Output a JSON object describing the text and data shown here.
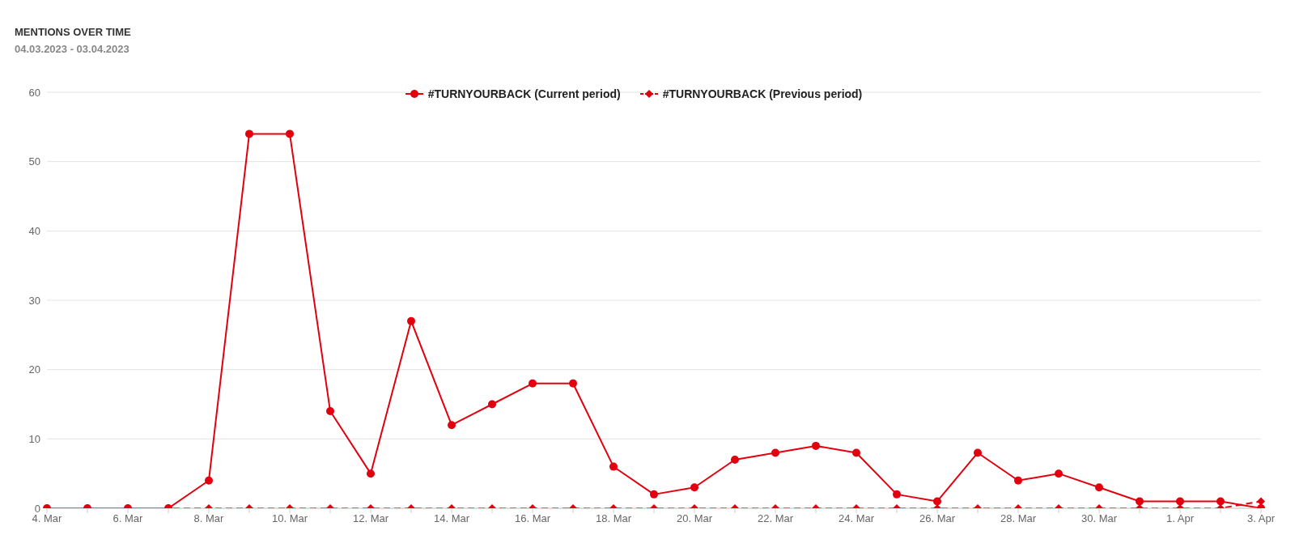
{
  "chart_data": {
    "type": "line",
    "title": "MENTIONS OVER TIME",
    "subtitle": "04.03.2023 - 03.04.2023",
    "categories": [
      "4. Mar",
      null,
      "6. Mar",
      null,
      "8. Mar",
      null,
      "10. Mar",
      null,
      "12. Mar",
      null,
      "14. Mar",
      null,
      "16. Mar",
      null,
      "18. Mar",
      null,
      "20. Mar",
      null,
      "22. Mar",
      null,
      "24. Mar",
      null,
      "26. Mar",
      null,
      "28. Mar",
      null,
      "30. Mar",
      null,
      "1. Apr",
      null,
      "3. Apr"
    ],
    "series": [
      {
        "name": "#TURNYOURBACK (Current period)",
        "color": "#e2000f",
        "marker": "circle",
        "line_style": "solid",
        "values": [
          0,
          0,
          0,
          0,
          4,
          54,
          54,
          14,
          5,
          27,
          12,
          15,
          18,
          18,
          6,
          2,
          3,
          7,
          8,
          9,
          8,
          2,
          1,
          8,
          4,
          5,
          3,
          1,
          1,
          1,
          0
        ]
      },
      {
        "name": "#TURNYOURBACK (Previous period)",
        "color": "#e2000f",
        "marker": "diamond",
        "line_style": "dashed",
        "values": [
          0,
          0,
          0,
          0,
          0,
          0,
          0,
          0,
          0,
          0,
          0,
          0,
          0,
          0,
          0,
          0,
          0,
          0,
          0,
          0,
          0,
          0,
          0,
          0,
          0,
          0,
          0,
          0,
          0,
          0,
          1
        ]
      }
    ],
    "ylim": [
      0,
      60
    ],
    "yticks": [
      0,
      10,
      20,
      30,
      40,
      50,
      60
    ],
    "grid": "y",
    "legend": "top"
  }
}
